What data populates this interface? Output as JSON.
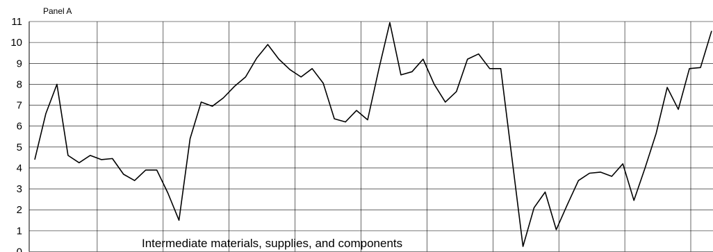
{
  "chart_data": {
    "type": "line",
    "panel_label": "Panel A",
    "annotation": "Intermediate materials, supplies, and components",
    "ylim": [
      0,
      11
    ],
    "yticks": [
      0,
      1,
      2,
      3,
      4,
      5,
      6,
      7,
      8,
      9,
      10,
      11
    ],
    "grid": true,
    "x_gridlines": 10,
    "series": [
      {
        "values": [
          4.4,
          6.6,
          8.0,
          4.6,
          4.25,
          4.6,
          4.4,
          4.45,
          3.7,
          3.4,
          3.9,
          3.9,
          2.8,
          1.5,
          5.4,
          7.15,
          6.95,
          7.35,
          7.9,
          8.35,
          9.25,
          9.9,
          9.2,
          8.7,
          8.35,
          8.75,
          8.05,
          6.35,
          6.2,
          6.75,
          6.3,
          8.7,
          10.95,
          8.45,
          8.6,
          9.2,
          8.0,
          7.15,
          7.65,
          9.2,
          9.45,
          8.75,
          8.75,
          4.5,
          0.25,
          2.1,
          2.85,
          1.05,
          2.25,
          3.4,
          3.75,
          3.8,
          3.6,
          4.2,
          2.45,
          4.0,
          5.65,
          7.85,
          6.8,
          8.75,
          8.8,
          10.55
        ]
      }
    ]
  }
}
